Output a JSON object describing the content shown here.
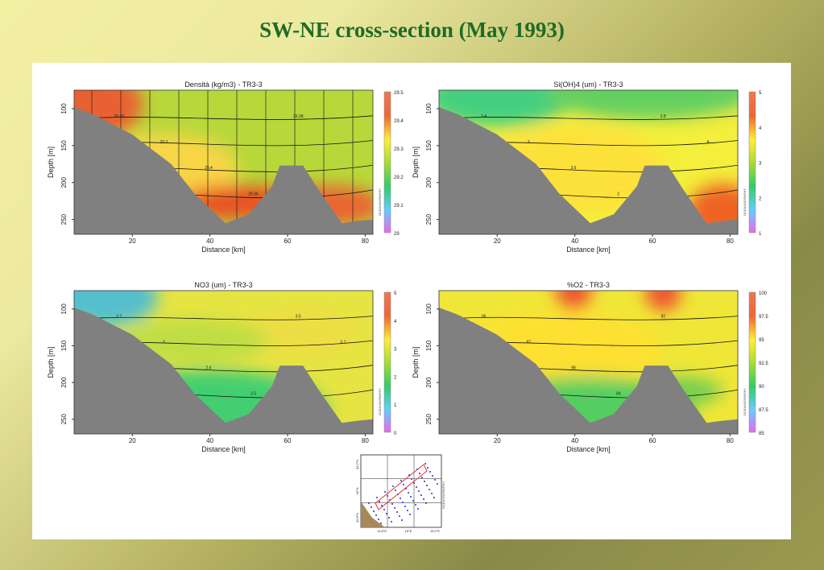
{
  "slide": {
    "title": "SW-NE cross-section (May 1993)"
  },
  "chart_data": [
    {
      "type": "heatmap",
      "title": "Densità (kg/m3) - TR3-3",
      "xlabel": "Distance [km]",
      "ylabel": "Depth [m]",
      "xlim": [
        5,
        82
      ],
      "ylim": [
        270,
        75
      ],
      "x_ticks": [
        "20",
        "40",
        "60",
        "80"
      ],
      "y_ticks": [
        "100",
        "150",
        "200",
        "250"
      ],
      "colorbar": {
        "min": 29,
        "max": 29.5,
        "ticks": [
          "29.5",
          "29.4",
          "29.3",
          "29.2",
          "29.1",
          "29"
        ]
      },
      "watermark": "OCEANOGRAPHY",
      "contour_labels": [
        "29.29",
        "29.3",
        "29.4",
        "29.36",
        "29.38"
      ],
      "bathymetry": [
        [
          5,
          98
        ],
        [
          10,
          108
        ],
        [
          20,
          135
        ],
        [
          30,
          175
        ],
        [
          36,
          215
        ],
        [
          44,
          255
        ],
        [
          50,
          243
        ],
        [
          56,
          205
        ],
        [
          58,
          177
        ],
        [
          64,
          177
        ],
        [
          68,
          210
        ],
        [
          74,
          255
        ],
        [
          78,
          252
        ],
        [
          82,
          250
        ]
      ]
    },
    {
      "type": "heatmap",
      "title": "Si(OH)4 (um) - TR3-3",
      "xlabel": "Distance [km]",
      "ylabel": "Depth [m]",
      "xlim": [
        5,
        82
      ],
      "ylim": [
        270,
        75
      ],
      "x_ticks": [
        "20",
        "40",
        "60",
        "80"
      ],
      "y_ticks": [
        "100",
        "150",
        "200",
        "250"
      ],
      "colorbar": {
        "min": 1,
        "max": 5,
        "ticks": [
          "5",
          "4",
          "3",
          "2",
          "1"
        ]
      },
      "watermark": "OCEANOGRAPHY",
      "contour_labels": [
        "3.4",
        "3",
        "3.6",
        "2",
        "2.8",
        "4"
      ],
      "bathymetry": [
        [
          5,
          98
        ],
        [
          10,
          108
        ],
        [
          20,
          135
        ],
        [
          30,
          175
        ],
        [
          36,
          215
        ],
        [
          44,
          255
        ],
        [
          50,
          243
        ],
        [
          56,
          205
        ],
        [
          58,
          177
        ],
        [
          64,
          177
        ],
        [
          68,
          210
        ],
        [
          74,
          255
        ],
        [
          78,
          252
        ],
        [
          82,
          250
        ]
      ]
    },
    {
      "type": "heatmap",
      "title": "NO3 (um) - TR3-3",
      "xlabel": "Distance [km]",
      "ylabel": "Depth [m]",
      "xlim": [
        5,
        82
      ],
      "ylim": [
        270,
        75
      ],
      "x_ticks": [
        "20",
        "40",
        "60",
        "80"
      ],
      "y_ticks": [
        "100",
        "150",
        "200",
        "250"
      ],
      "colorbar": {
        "min": 0,
        "max": 5,
        "ticks": [
          "5",
          "4",
          "3",
          "2",
          "1",
          "0"
        ]
      },
      "watermark": "OCEANOGRAPHY",
      "contour_labels": [
        "3.2",
        "3",
        "2.6",
        "2.5",
        "3.5",
        "3.1"
      ],
      "bathymetry": [
        [
          5,
          98
        ],
        [
          10,
          108
        ],
        [
          20,
          135
        ],
        [
          30,
          175
        ],
        [
          36,
          215
        ],
        [
          44,
          255
        ],
        [
          50,
          243
        ],
        [
          56,
          205
        ],
        [
          58,
          177
        ],
        [
          64,
          177
        ],
        [
          68,
          210
        ],
        [
          74,
          255
        ],
        [
          78,
          252
        ],
        [
          82,
          250
        ]
      ]
    },
    {
      "type": "heatmap",
      "title": "%O2 - TR3-3",
      "xlabel": "Distance [km]",
      "ylabel": "Depth [m]",
      "xlim": [
        5,
        82
      ],
      "ylim": [
        270,
        75
      ],
      "x_ticks": [
        "20",
        "40",
        "60",
        "80"
      ],
      "y_ticks": [
        "100",
        "150",
        "200",
        "250"
      ],
      "colorbar": {
        "min": 85,
        "max": 100,
        "ticks": [
          "100",
          "97.5",
          "95",
          "92.5",
          "90",
          "87.5",
          "85"
        ]
      },
      "watermark": "OCEANOGRAPHY",
      "contour_labels": [
        "96",
        "97",
        "98",
        "94",
        "92"
      ],
      "bathymetry": [
        [
          5,
          98
        ],
        [
          10,
          108
        ],
        [
          20,
          135
        ],
        [
          30,
          175
        ],
        [
          36,
          215
        ],
        [
          44,
          255
        ],
        [
          50,
          243
        ],
        [
          56,
          205
        ],
        [
          58,
          177
        ],
        [
          64,
          177
        ],
        [
          68,
          210
        ],
        [
          74,
          255
        ],
        [
          78,
          252
        ],
        [
          82,
          250
        ]
      ]
    }
  ],
  "inset_map": {
    "lat_labels": [
      "43.2°N",
      "43°N",
      "42.8°N"
    ],
    "lon_labels": [
      "14.8°E",
      "15°E",
      "15.2°E"
    ],
    "watermark": "OCEANOGRAPHY",
    "colors": {
      "stations": "#2233cc",
      "transect": "#e23333",
      "land": "#a8875a",
      "grid": "#222222"
    }
  },
  "colors": {
    "page_title": "#1f6b25",
    "bathymetry": "#808080",
    "colorbar_stops": [
      "#ee66ee",
      "#66ccff",
      "#33cc66",
      "#aadd33",
      "#ffee33",
      "#ee6633",
      "#ee7755"
    ]
  }
}
